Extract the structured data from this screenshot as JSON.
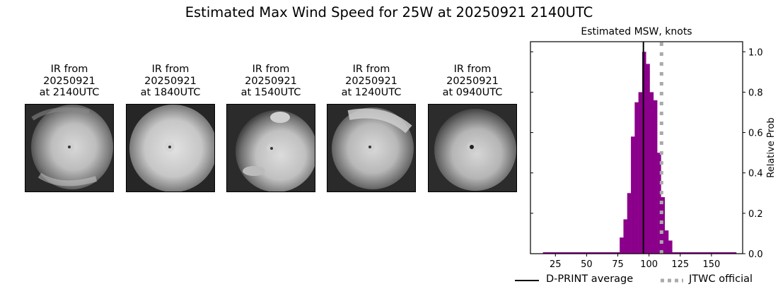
{
  "figure": {
    "title": "Estimated Max Wind Speed for 25W at 20250921 2140UTC"
  },
  "ir_panels": [
    {
      "line1": "IR from",
      "line2": "20250921",
      "line3": "at 2140UTC"
    },
    {
      "line1": "IR from",
      "line2": "20250921",
      "line3": "at 1840UTC"
    },
    {
      "line1": "IR from",
      "line2": "20250921",
      "line3": "at 1540UTC"
    },
    {
      "line1": "IR from",
      "line2": "20250921",
      "line3": "at 1240UTC"
    },
    {
      "line1": "IR from",
      "line2": "20250921",
      "line3": "at 0940UTC"
    }
  ],
  "chart_data": {
    "type": "bar",
    "title": "Estimated MSW, knots",
    "xlabel": "",
    "ylabel": "Relative Prob",
    "xlim": [
      5,
      175
    ],
    "ylim": [
      0,
      1.05
    ],
    "xticks": [
      25,
      50,
      75,
      100,
      125,
      150
    ],
    "yticks": [
      0.0,
      0.2,
      0.4,
      0.6,
      0.8,
      1.0
    ],
    "ytick_labels": [
      "0.0",
      "0.2",
      "0.4",
      "0.6",
      "0.8",
      "1.0"
    ],
    "y_axis_side": "right",
    "grid": false,
    "baseline_range": [
      15,
      170
    ],
    "bin_edges": [
      76.5,
      79.5,
      82.5,
      85.5,
      88.5,
      91.5,
      94.5,
      97.5,
      100.5,
      103.5,
      106.5,
      109.5,
      112.5,
      115.5,
      118.5
    ],
    "categories": [
      "78",
      "81",
      "84",
      "87",
      "90",
      "93",
      "96",
      "99",
      "102",
      "105",
      "108",
      "111",
      "114",
      "117"
    ],
    "values": [
      0.08,
      0.17,
      0.3,
      0.58,
      0.75,
      0.8,
      1.0,
      0.94,
      0.8,
      0.76,
      0.5,
      0.28,
      0.115,
      0.065
    ],
    "bar_color": "#8b008b",
    "lines": [
      {
        "name": "D-PRINT average",
        "x": 95.5,
        "style": "solid",
        "color": "#000000"
      },
      {
        "name": "JTWC official",
        "x": 110,
        "style": "dotted",
        "color": "#aaaaaa"
      }
    ],
    "legend": {
      "position": "bottom",
      "entries": [
        "D-PRINT average",
        "JTWC official"
      ]
    }
  }
}
